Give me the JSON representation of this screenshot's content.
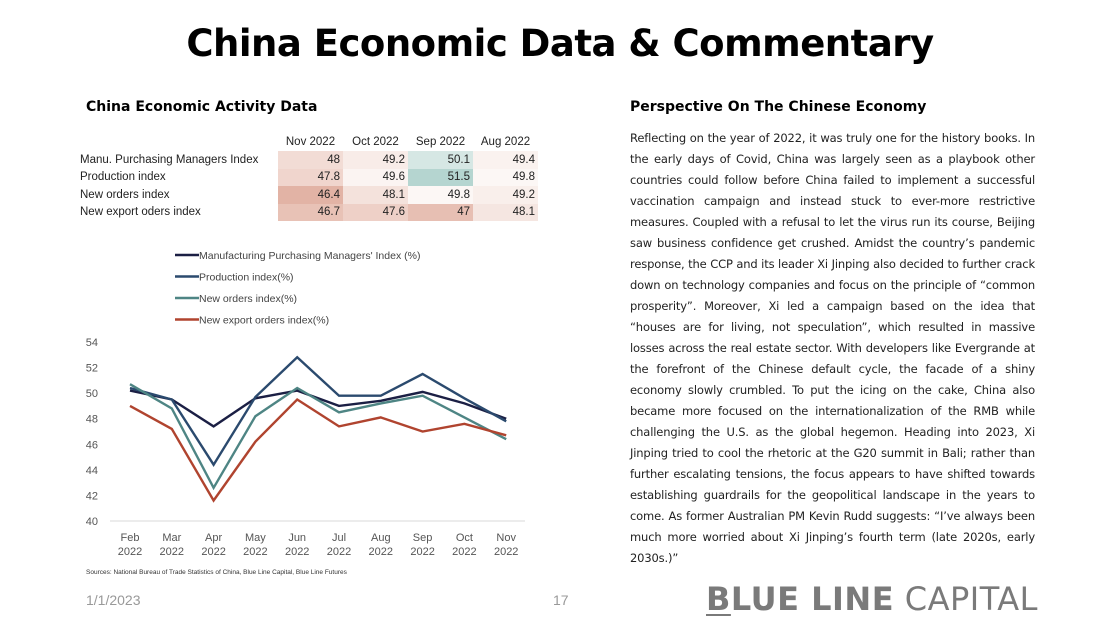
{
  "title": "China Economic Data & Commentary",
  "left_section_title": "China Economic Activity Data",
  "right_section_title": "Perspective On The Chinese Economy",
  "table": {
    "columns": [
      "Nov 2022",
      "Oct 2022",
      "Sep 2022",
      "Aug 2022"
    ],
    "rows": [
      {
        "label": "Manu. Purchasing Managers Index",
        "values": [
          "48",
          "49.2",
          "50.1",
          "49.4"
        ],
        "colors": [
          "#f2dcd5",
          "#f8ece8",
          "#d6e7e4",
          "#faf2ef"
        ]
      },
      {
        "label": "Production index",
        "values": [
          "47.8",
          "49.6",
          "51.5",
          "49.8"
        ],
        "colors": [
          "#f0d5cd",
          "#fbf4f2",
          "#b5d5d0",
          "#fcf7f5"
        ]
      },
      {
        "label": "New orders index",
        "values": [
          "46.4",
          "48.1",
          "49.8",
          "49.2"
        ],
        "colors": [
          "#e2b3a5",
          "#f4e2dc",
          "#fcf7f5",
          "#f9efeb"
        ]
      },
      {
        "label": "New export oders index",
        "values": [
          "46.7",
          "47.6",
          "47",
          "48.1"
        ],
        "colors": [
          "#e8c2b6",
          "#eed0c7",
          "#e7bfb3",
          "#f5e6e1"
        ]
      }
    ]
  },
  "chart_data": {
    "type": "line",
    "categories": [
      "Feb 2022",
      "Mar 2022",
      "Apr 2022",
      "May 2022",
      "Jun 2022",
      "Jul 2022",
      "Aug 2022",
      "Sep 2022",
      "Oct 2022",
      "Nov 2022"
    ],
    "category_lines": [
      [
        "Feb",
        "2022"
      ],
      [
        "Mar",
        "2022"
      ],
      [
        "Apr",
        "2022"
      ],
      [
        "May",
        "2022"
      ],
      [
        "Jun",
        "2022"
      ],
      [
        "Jul",
        "2022"
      ],
      [
        "Aug",
        "2022"
      ],
      [
        "Sep",
        "2022"
      ],
      [
        "Oct",
        "2022"
      ],
      [
        "Nov",
        "2022"
      ]
    ],
    "series": [
      {
        "name": "Manufacturing Purchasing Managers' Index (%)",
        "color": "#1b1f44",
        "values": [
          50.2,
          49.5,
          47.4,
          49.6,
          50.2,
          49.0,
          49.4,
          50.1,
          49.2,
          48.0
        ]
      },
      {
        "name": "Production index(%)",
        "color": "#2b4a6e",
        "values": [
          50.4,
          49.5,
          44.4,
          49.7,
          52.8,
          49.8,
          49.8,
          51.5,
          49.6,
          47.8
        ]
      },
      {
        "name": "New orders index(%)",
        "color": "#4e8584",
        "values": [
          50.7,
          48.8,
          42.6,
          48.2,
          50.4,
          48.5,
          49.2,
          49.8,
          48.1,
          46.4
        ]
      },
      {
        "name": "New export orders index(%)",
        "color": "#b0442f",
        "values": [
          49.0,
          47.2,
          41.6,
          46.2,
          49.5,
          47.4,
          48.1,
          47.0,
          47.6,
          46.7
        ]
      }
    ],
    "ylim": [
      40,
      54
    ],
    "yticks": [
      40,
      42,
      44,
      46,
      48,
      50,
      52,
      54
    ],
    "legend_position": "top-left",
    "grid": false,
    "xlabel": "",
    "ylabel": ""
  },
  "sources": "Sources: National Bureau of Trade Statistics of China, Blue Line Capital, Blue Line Futures",
  "body": "Reflecting on the year of 2022, it was truly one for the history books. In the early days of Covid, China was largely seen as a playbook other countries could follow before China failed to implement a successful vaccination campaign and instead stuck to ever-more restrictive measures. Coupled with a refusal to let the virus run its course, Beijing saw business confidence get crushed. Amidst the country’s pandemic response, the CCP and its leader Xi Jinping also decided to further crack down on technology companies and focus on the principle of “common prosperity”. Moreover, Xi led a campaign based on the idea that “houses are for living, not speculation”, which resulted in massive losses across the real estate sector. With developers like Evergrande at the forefront of the Chinese default cycle, the facade of a shiny economy slowly crumbled. To put the icing on the cake, China also became more focused on the internationalization of the RMB while challenging the U.S. as the global hegemon. Heading into 2023, Xi Jinping tried to cool the rhetoric at the G20 summit in Bali; rather than further escalating tensions, the focus appears to have shifted towards establishing guardrails for the geopolitical landscape in the years to come. As former Australian PM Kevin Rudd suggests: “I’ve always been much more worried about Xi Jinping’s fourth term (late 2020s, early 2030s.)”",
  "footer": {
    "date": "1/1/2023",
    "page": "17",
    "logo_b": "B",
    "logo_bold_rest": "LUE LINE",
    "logo_light": " CAPITAL"
  }
}
